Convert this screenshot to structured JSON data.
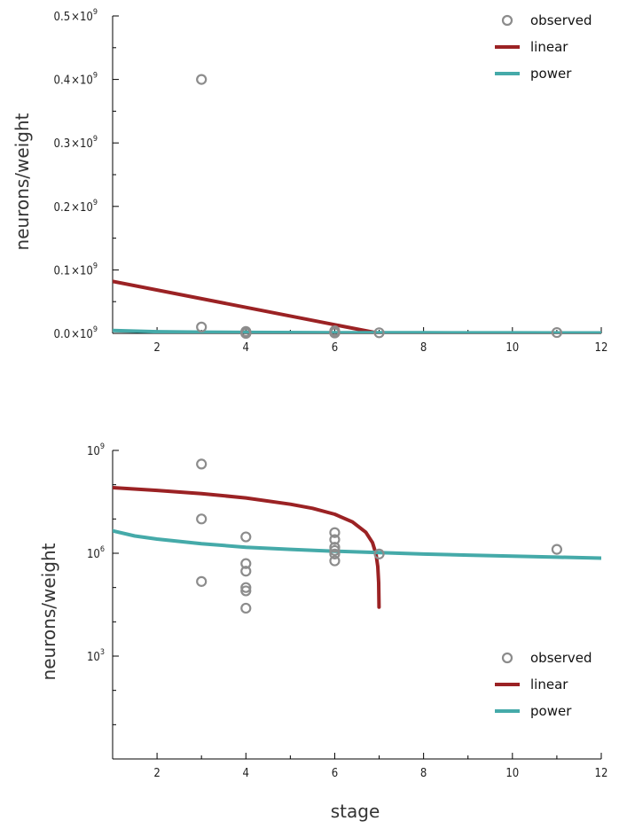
{
  "chart_data": [
    {
      "type": "scatter",
      "panel": "top",
      "scale": "linear",
      "xlabel": "",
      "ylabel": "neurons/weight",
      "xlim": [
        1,
        12
      ],
      "ylim": [
        0,
        500000000
      ],
      "xticks": [
        2,
        4,
        6,
        8,
        10,
        12
      ],
      "xtick_labels": [
        "2",
        "4",
        "6",
        "8",
        "10",
        "12"
      ],
      "yticks": [
        0,
        100000000,
        200000000,
        300000000,
        400000000,
        500000000
      ],
      "ytick_labels": [
        {
          "mantissa": "0.0",
          "times": "×",
          "base": "10",
          "exponent": "9"
        },
        {
          "mantissa": "0.1",
          "times": "×",
          "base": "10",
          "exponent": "9"
        },
        {
          "mantissa": "0.2",
          "times": "×",
          "base": "10",
          "exponent": "9"
        },
        {
          "mantissa": "0.3",
          "times": "×",
          "base": "10",
          "exponent": "9"
        },
        {
          "mantissa": "0.4",
          "times": "×",
          "base": "10",
          "exponent": "9"
        },
        {
          "mantissa": "0.5",
          "times": "×",
          "base": "10",
          "exponent": "9"
        }
      ],
      "legend_position": "top-right",
      "series": [
        {
          "name": "observed",
          "kind": "points",
          "color": "#8c8c8c",
          "x": [
            3,
            3,
            4,
            4,
            4,
            4,
            4,
            6,
            6,
            6,
            6,
            6,
            6,
            7,
            11
          ],
          "y": [
            400000000,
            10000000,
            3000000,
            500000,
            300000,
            150000,
            25000,
            4000000,
            2500000,
            1500000,
            1200000,
            1000000,
            600000,
            950000,
            1300000
          ]
        },
        {
          "name": "linear",
          "kind": "line",
          "color": "#9b2224",
          "x": [
            1,
            7
          ],
          "y": [
            82000000,
            0
          ]
        },
        {
          "name": "power",
          "kind": "line",
          "color": "#45aaa9",
          "x": [
            1,
            2,
            3,
            4,
            6,
            8,
            10,
            12
          ],
          "y": [
            4500000,
            2600000,
            1900000,
            1500000,
            1150000,
            950000,
            820000,
            720000
          ]
        }
      ]
    },
    {
      "type": "scatter",
      "panel": "bottom",
      "scale": "log",
      "xlabel": "stage",
      "ylabel": "neurons/weight",
      "xlim": [
        1,
        12
      ],
      "ylim": [
        1,
        1000000000
      ],
      "xticks": [
        2,
        4,
        6,
        8,
        10,
        12
      ],
      "xtick_labels": [
        "2",
        "4",
        "6",
        "8",
        "10",
        "12"
      ],
      "yticks": [
        1000,
        1000000,
        1000000000
      ],
      "ytick_labels": [
        {
          "base": "10",
          "exponent": "3"
        },
        {
          "base": "10",
          "exponent": "6"
        },
        {
          "base": "10",
          "exponent": "9"
        }
      ],
      "legend_position": "bottom-right",
      "series": [
        {
          "name": "observed",
          "kind": "points",
          "color": "#8c8c8c",
          "x": [
            3,
            3,
            3,
            4,
            4,
            4,
            4,
            4,
            4,
            6,
            6,
            6,
            6,
            6,
            6,
            7,
            11
          ],
          "y": [
            400000000,
            10000000,
            150000,
            3000000,
            500000,
            300000,
            100000,
            80000,
            25000,
            4000000,
            2500000,
            1500000,
            1200000,
            600000,
            950000,
            950000,
            1300000
          ]
        },
        {
          "name": "linear",
          "kind": "line",
          "color": "#9b2224",
          "x": [
            1,
            2,
            3,
            4,
            5,
            5.5,
            6,
            6.4,
            6.7,
            6.85,
            6.93,
            6.97,
            6.99,
            6.998
          ],
          "y": [
            82000000,
            68000000,
            55000000,
            41000000,
            27000000,
            20500000,
            13700000,
            8200000,
            4100000,
            2050000,
            950000,
            410000,
            137000,
            27000
          ]
        },
        {
          "name": "power",
          "kind": "line",
          "color": "#45aaa9",
          "x": [
            1,
            1.5,
            2,
            3,
            4,
            5,
            6,
            7,
            8,
            9,
            10,
            11,
            12
          ],
          "y": [
            4500000,
            3200000,
            2600000,
            1900000,
            1500000,
            1300000,
            1150000,
            1050000,
            950000,
            880000,
            820000,
            770000,
            720000
          ]
        }
      ]
    }
  ]
}
